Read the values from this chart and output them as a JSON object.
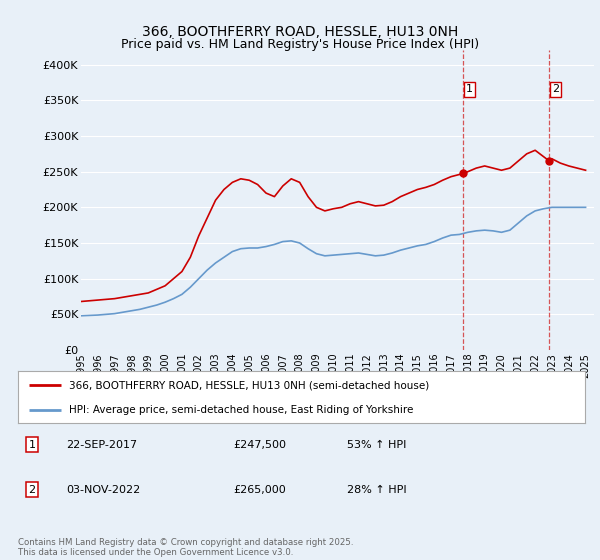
{
  "title_line1": "366, BOOTHFERRY ROAD, HESSLE, HU13 0NH",
  "title_line2": "Price paid vs. HM Land Registry's House Price Index (HPI)",
  "ylim": [
    0,
    420000
  ],
  "xlim_start": 1995.0,
  "xlim_end": 2025.5,
  "yticks": [
    0,
    50000,
    100000,
    150000,
    200000,
    250000,
    300000,
    350000,
    400000
  ],
  "ytick_labels": [
    "£0",
    "£50K",
    "£100K",
    "£150K",
    "£200K",
    "£250K",
    "£300K",
    "£350K",
    "£400K"
  ],
  "background_color": "#e8f0f8",
  "plot_bg_color": "#e8f0f8",
  "red_color": "#cc0000",
  "blue_color": "#6699cc",
  "marker1_date": "22-SEP-2017",
  "marker1_price": "£247,500",
  "marker1_hpi": "53% ↑ HPI",
  "marker1_year": 2017.73,
  "marker1_value": 247500,
  "marker2_date": "03-NOV-2022",
  "marker2_price": "£265,000",
  "marker2_hpi": "28% ↑ HPI",
  "marker2_year": 2022.84,
  "marker2_value": 265000,
  "legend_line1": "366, BOOTHFERRY ROAD, HESSLE, HU13 0NH (semi-detached house)",
  "legend_line2": "HPI: Average price, semi-detached house, East Riding of Yorkshire",
  "footer": "Contains HM Land Registry data © Crown copyright and database right 2025.\nThis data is licensed under the Open Government Licence v3.0.",
  "red_x": [
    1995.0,
    1995.5,
    1996.0,
    1996.5,
    1997.0,
    1997.5,
    1998.0,
    1998.5,
    1999.0,
    1999.5,
    2000.0,
    2000.5,
    2001.0,
    2001.5,
    2002.0,
    2002.5,
    2003.0,
    2003.5,
    2004.0,
    2004.5,
    2005.0,
    2005.5,
    2006.0,
    2006.5,
    2007.0,
    2007.5,
    2008.0,
    2008.5,
    2009.0,
    2009.5,
    2010.0,
    2010.5,
    2011.0,
    2011.5,
    2012.0,
    2012.5,
    2013.0,
    2013.5,
    2014.0,
    2014.5,
    2015.0,
    2015.5,
    2016.0,
    2016.5,
    2017.0,
    2017.73,
    2018.0,
    2018.5,
    2019.0,
    2019.5,
    2020.0,
    2020.5,
    2021.0,
    2021.5,
    2022.0,
    2022.84,
    2023.0,
    2023.5,
    2024.0,
    2024.5,
    2025.0
  ],
  "red_y": [
    68000,
    69000,
    70000,
    71000,
    72000,
    74000,
    76000,
    78000,
    80000,
    85000,
    90000,
    100000,
    110000,
    130000,
    160000,
    185000,
    210000,
    225000,
    235000,
    240000,
    238000,
    232000,
    220000,
    215000,
    230000,
    240000,
    235000,
    215000,
    200000,
    195000,
    198000,
    200000,
    205000,
    208000,
    205000,
    202000,
    203000,
    208000,
    215000,
    220000,
    225000,
    228000,
    232000,
    238000,
    243000,
    247500,
    250000,
    255000,
    258000,
    255000,
    252000,
    255000,
    265000,
    275000,
    280000,
    265000,
    268000,
    262000,
    258000,
    255000,
    252000
  ],
  "blue_x": [
    1995.0,
    1995.5,
    1996.0,
    1996.5,
    1997.0,
    1997.5,
    1998.0,
    1998.5,
    1999.0,
    1999.5,
    2000.0,
    2000.5,
    2001.0,
    2001.5,
    2002.0,
    2002.5,
    2003.0,
    2003.5,
    2004.0,
    2004.5,
    2005.0,
    2005.5,
    2006.0,
    2006.5,
    2007.0,
    2007.5,
    2008.0,
    2008.5,
    2009.0,
    2009.5,
    2010.0,
    2010.5,
    2011.0,
    2011.5,
    2012.0,
    2012.5,
    2013.0,
    2013.5,
    2014.0,
    2014.5,
    2015.0,
    2015.5,
    2016.0,
    2016.5,
    2017.0,
    2017.5,
    2018.0,
    2018.5,
    2019.0,
    2019.5,
    2020.0,
    2020.5,
    2021.0,
    2021.5,
    2022.0,
    2022.5,
    2023.0,
    2023.5,
    2024.0,
    2024.5,
    2025.0
  ],
  "blue_y": [
    48000,
    48500,
    49000,
    50000,
    51000,
    53000,
    55000,
    57000,
    60000,
    63000,
    67000,
    72000,
    78000,
    88000,
    100000,
    112000,
    122000,
    130000,
    138000,
    142000,
    143000,
    143000,
    145000,
    148000,
    152000,
    153000,
    150000,
    142000,
    135000,
    132000,
    133000,
    134000,
    135000,
    136000,
    134000,
    132000,
    133000,
    136000,
    140000,
    143000,
    146000,
    148000,
    152000,
    157000,
    161000,
    162000,
    165000,
    167000,
    168000,
    167000,
    165000,
    168000,
    178000,
    188000,
    195000,
    198000,
    200000,
    200000,
    200000,
    200000,
    200000
  ]
}
